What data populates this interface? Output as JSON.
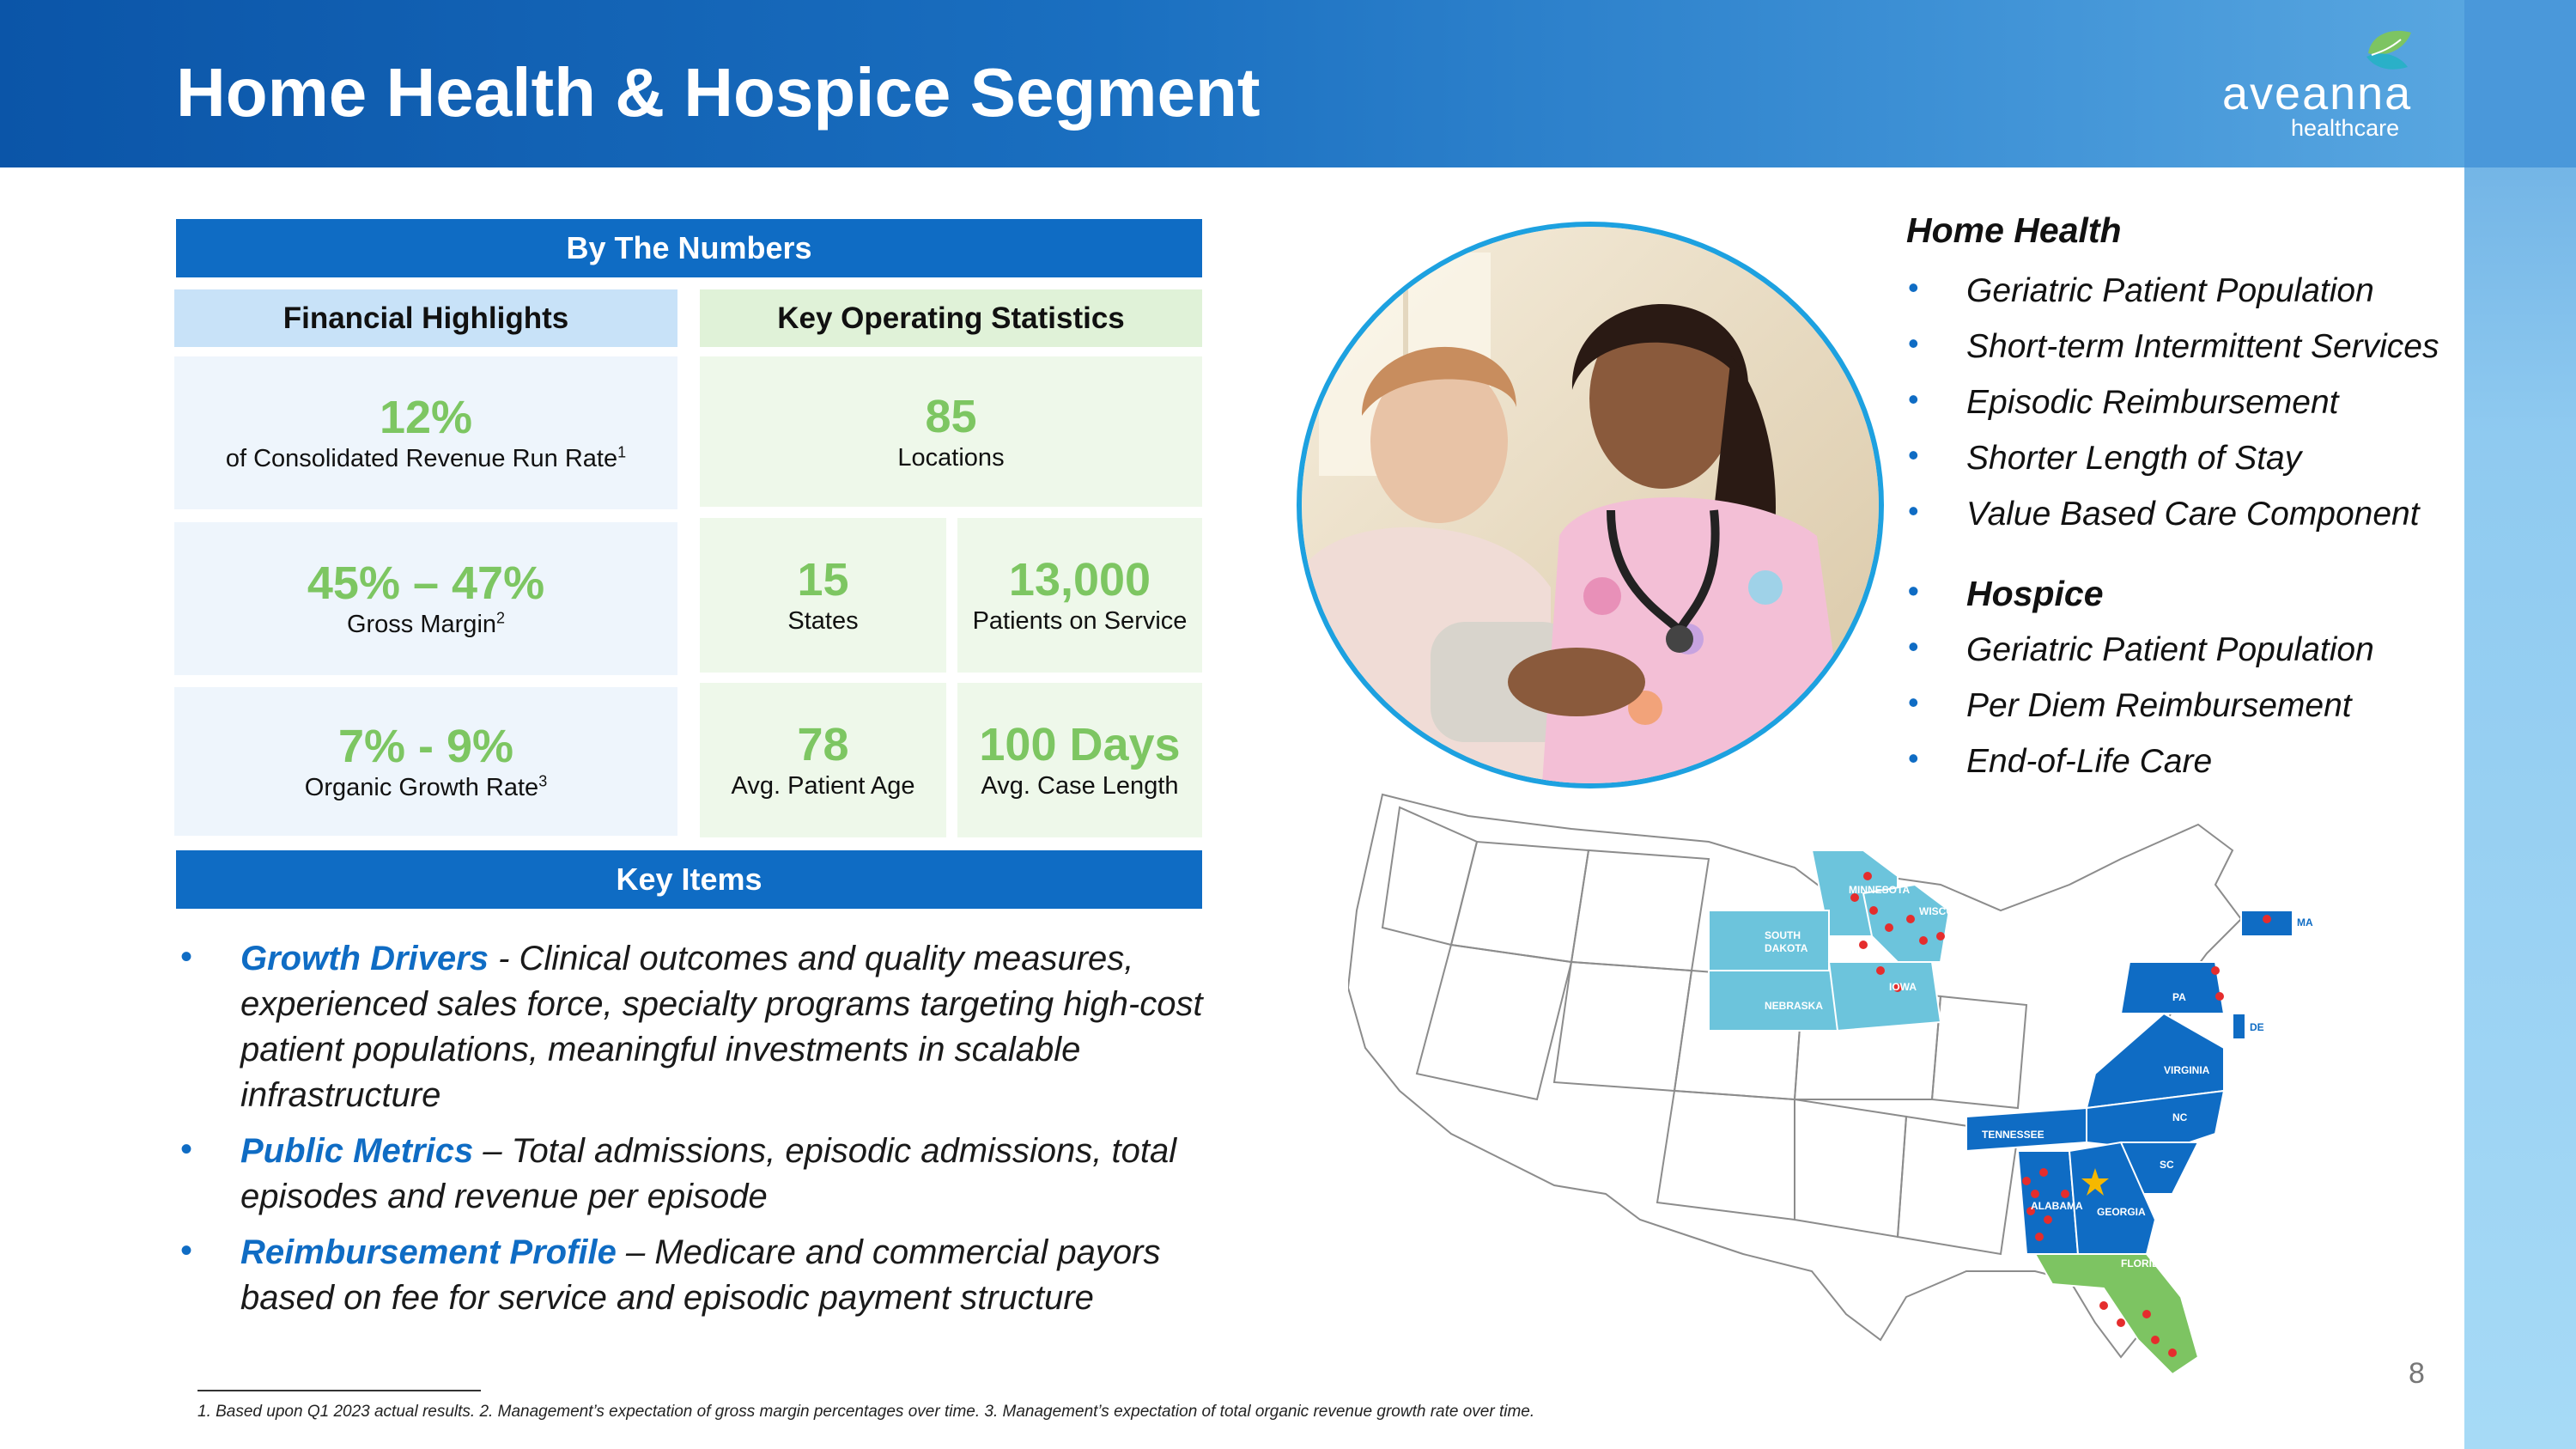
{
  "title": "Home Health & Hospice Segment",
  "logo": {
    "name": "aveanna",
    "sub": "healthcare"
  },
  "by_the_numbers": {
    "header": "By The Numbers",
    "financial": {
      "header": "Financial Highlights",
      "items": [
        {
          "value": "12%",
          "label": "of Consolidated Revenue Run Rate",
          "sup": "1"
        },
        {
          "value": "45% – 47%",
          "label": "Gross Margin",
          "sup": "2"
        },
        {
          "value": "7% - 9%",
          "label": "Organic Growth Rate",
          "sup": "3"
        }
      ]
    },
    "operating": {
      "header": "Key Operating Statistics",
      "locations": {
        "value": "85",
        "label": "Locations"
      },
      "states": {
        "value": "15",
        "label": "States"
      },
      "patients": {
        "value": "13,000",
        "label": "Patients on Service"
      },
      "age": {
        "value": "78",
        "label": "Avg. Patient Age"
      },
      "case_length": {
        "value": "100 Days",
        "label": "Avg. Case Length"
      }
    }
  },
  "key_items": {
    "header": "Key Items",
    "items": [
      {
        "highlight": "Growth Drivers",
        "text": " - Clinical outcomes and quality measures, experienced sales force, specialty programs targeting high-cost patient populations, meaningful investments in scalable infrastructure"
      },
      {
        "highlight": "Public Metrics",
        "text": " – Total admissions, episodic admissions, total episodes and revenue per episode"
      },
      {
        "highlight": "Reimbursement Profile",
        "text": " – Medicare and commercial payors based on fee for service and episodic payment structure"
      }
    ]
  },
  "home_health": {
    "header": "Home Health",
    "items": [
      "Geriatric Patient Population",
      "Short-term Intermittent Services",
      "Episodic Reimbursement",
      "Shorter Length of Stay",
      "Value Based Care Component"
    ]
  },
  "hospice": {
    "header": "Hospice",
    "items": [
      "Geriatric Patient Population",
      "Per Diem Reimbursement",
      "End-of-Life Care"
    ]
  },
  "map_labels": {
    "minnesota": "MINNESOTA",
    "wisconsin": "WISCONSIN",
    "south_dakota_1": "SOUTH",
    "south_dakota_2": "DAKOTA",
    "nebraska": "NEBRASKA",
    "iowa": "IOWA",
    "pa": "PA",
    "de": "DE",
    "ma": "MA",
    "virginia": "VIRGINIA",
    "nc": "NC",
    "sc": "SC",
    "tennessee": "TENNESSEE",
    "alabama": "ALABAMA",
    "georgia": "GEORGIA",
    "florida": "FLORIDA"
  },
  "colors": {
    "primary_blue": "#0f6cc4",
    "light_blue_state": "#6cc4dc",
    "green_state": "#7dc462",
    "value_green": "#7dc662"
  },
  "footnote": "1. Based upon Q1 2023 actual results. 2. Management’s expectation of gross margin percentages over time. 3. Management’s expectation of total organic revenue growth rate over time.",
  "page_number": "8"
}
